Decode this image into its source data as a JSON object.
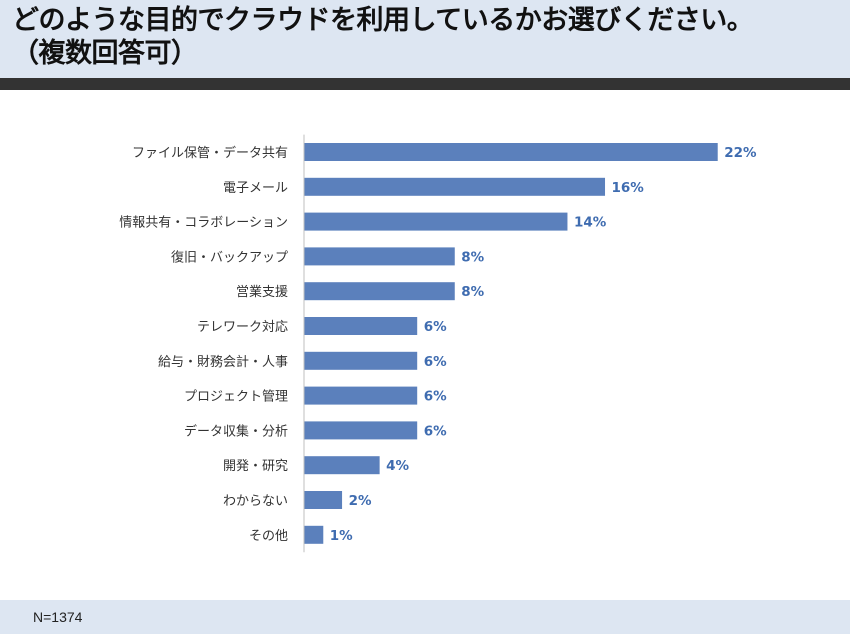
{
  "header": {
    "title_line1": "どのような目的でクラウドを利用しているかお選びください。",
    "title_line2": "（複数回答可）"
  },
  "footer": {
    "note": "N=1374"
  },
  "colors": {
    "bar": "#5b80bc",
    "value_label": "#3f6cb0",
    "category_label": "#333333",
    "axis": "#bfbfbf"
  },
  "chart_data": {
    "type": "bar",
    "orientation": "horizontal",
    "categories": [
      "ファイル保管・データ共有",
      "電子メール",
      "情報共有・コラボレーション",
      "復旧・バックアップ",
      "営業支援",
      "テレワーク対応",
      "給与・財務会計・人事",
      "プロジェクト管理",
      "データ収集・分析",
      "開発・研究",
      "わからない",
      "その他"
    ],
    "values": [
      22,
      16,
      14,
      8,
      8,
      6,
      6,
      6,
      6,
      4,
      2,
      1
    ],
    "value_labels": [
      "22%",
      "16%",
      "14%",
      "8%",
      "8%",
      "6%",
      "6%",
      "6%",
      "6%",
      "4%",
      "2%",
      "1%"
    ],
    "title": "",
    "xlabel": "",
    "ylabel": "",
    "xlim": [
      0,
      23
    ],
    "grid": false,
    "legend": "none"
  }
}
